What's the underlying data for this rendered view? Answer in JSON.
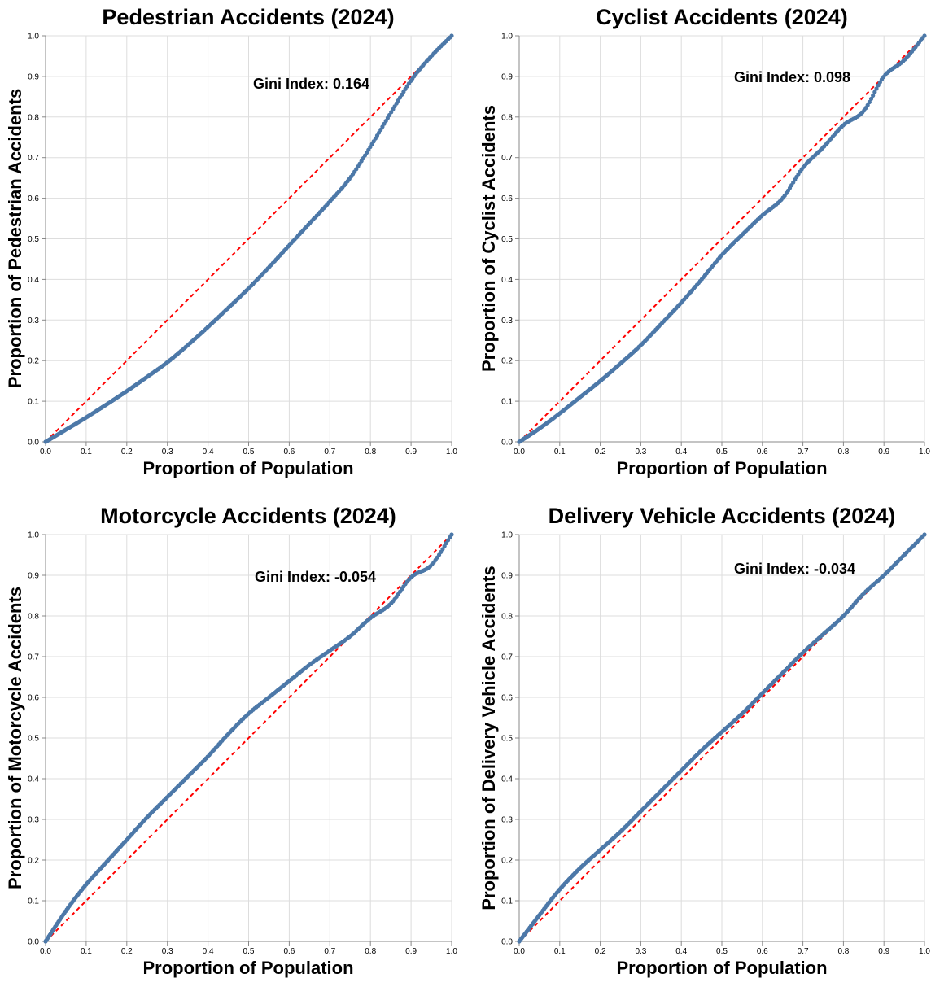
{
  "colors": {
    "curve": "#4c78a8",
    "equality": "#ff0000",
    "grid": "#dddddd"
  },
  "chart_data": [
    {
      "type": "line",
      "title": "Pedestrian Accidents (2024)",
      "xlabel": "Proportion of Population",
      "ylabel": "Proportion of Pedestrian Accidents",
      "annotation": "Gini Index: 0.164",
      "xlim": [
        0,
        1
      ],
      "ylim": [
        0,
        1
      ],
      "x_ticks": [
        "0.0",
        "0.1",
        "0.2",
        "0.3",
        "0.4",
        "0.5",
        "0.6",
        "0.7",
        "0.8",
        "0.9",
        "1.0"
      ],
      "y_ticks": [
        "0.0",
        "0.1",
        "0.2",
        "0.3",
        "0.4",
        "0.5",
        "0.6",
        "0.7",
        "0.8",
        "0.9",
        "1.0"
      ],
      "grid": true,
      "series": [
        {
          "values_x": [
            0,
            0.05,
            0.1,
            0.15,
            0.2,
            0.25,
            0.3,
            0.35,
            0.4,
            0.45,
            0.5,
            0.55,
            0.6,
            0.65,
            0.7,
            0.75,
            0.8,
            0.85,
            0.9,
            0.95,
            1.0
          ],
          "values_y": [
            0,
            0.03,
            0.06,
            0.092,
            0.125,
            0.16,
            0.196,
            0.238,
            0.283,
            0.33,
            0.378,
            0.43,
            0.484,
            0.538,
            0.592,
            0.65,
            0.727,
            0.81,
            0.89,
            0.95,
            1.0
          ]
        },
        {
          "values_x": [
            0,
            1
          ],
          "values_y": [
            0,
            1
          ]
        }
      ]
    },
    {
      "type": "line",
      "title": "Cyclist Accidents (2024)",
      "xlabel": "Proportion of Population",
      "ylabel": "Proportion of Cyclist Accidents",
      "annotation": "Gini Index: 0.098",
      "xlim": [
        0,
        1
      ],
      "ylim": [
        0,
        1
      ],
      "x_ticks": [
        "0.0",
        "0.1",
        "0.2",
        "0.3",
        "0.4",
        "0.5",
        "0.6",
        "0.7",
        "0.8",
        "0.9",
        "1.0"
      ],
      "y_ticks": [
        "0.0",
        "0.1",
        "0.2",
        "0.3",
        "0.4",
        "0.5",
        "0.6",
        "0.7",
        "0.8",
        "0.9",
        "1.0"
      ],
      "grid": true,
      "series": [
        {
          "values_x": [
            0,
            0.05,
            0.1,
            0.15,
            0.2,
            0.25,
            0.3,
            0.35,
            0.4,
            0.45,
            0.5,
            0.55,
            0.6,
            0.65,
            0.7,
            0.75,
            0.8,
            0.85,
            0.9,
            0.95,
            1.0
          ],
          "values_y": [
            0,
            0.033,
            0.07,
            0.11,
            0.15,
            0.193,
            0.238,
            0.29,
            0.343,
            0.4,
            0.46,
            0.51,
            0.558,
            0.6,
            0.675,
            0.725,
            0.78,
            0.815,
            0.9,
            0.94,
            1.0
          ]
        },
        {
          "values_x": [
            0,
            1
          ],
          "values_y": [
            0,
            1
          ]
        }
      ]
    },
    {
      "type": "line",
      "title": "Motorcycle Accidents (2024)",
      "xlabel": "Proportion of Population",
      "ylabel": "Proportion of Motorcycle Accidents",
      "annotation": "Gini Index: -0.054",
      "xlim": [
        0,
        1
      ],
      "ylim": [
        0,
        1
      ],
      "x_ticks": [
        "0.0",
        "0.1",
        "0.2",
        "0.3",
        "0.4",
        "0.5",
        "0.6",
        "0.7",
        "0.8",
        "0.9",
        "1.0"
      ],
      "y_ticks": [
        "0.0",
        "0.1",
        "0.2",
        "0.3",
        "0.4",
        "0.5",
        "0.6",
        "0.7",
        "0.8",
        "0.9",
        "1.0"
      ],
      "grid": true,
      "series": [
        {
          "values_x": [
            0,
            0.05,
            0.1,
            0.15,
            0.2,
            0.25,
            0.3,
            0.35,
            0.4,
            0.45,
            0.5,
            0.55,
            0.6,
            0.65,
            0.7,
            0.75,
            0.8,
            0.85,
            0.9,
            0.95,
            1.0
          ],
          "values_y": [
            0,
            0.075,
            0.14,
            0.195,
            0.25,
            0.305,
            0.355,
            0.405,
            0.455,
            0.51,
            0.56,
            0.6,
            0.64,
            0.68,
            0.715,
            0.75,
            0.795,
            0.83,
            0.895,
            0.925,
            1.0
          ]
        },
        {
          "values_x": [
            0,
            1
          ],
          "values_y": [
            0,
            1
          ]
        }
      ]
    },
    {
      "type": "line",
      "title": "Delivery Vehicle Accidents (2024)",
      "xlabel": "Proportion of Population",
      "ylabel": "Proportion of Delivery Vehicle Accidents",
      "annotation": "Gini Index: -0.034",
      "xlim": [
        0,
        1
      ],
      "ylim": [
        0,
        1
      ],
      "x_ticks": [
        "0.0",
        "0.1",
        "0.2",
        "0.3",
        "0.4",
        "0.5",
        "0.6",
        "0.7",
        "0.8",
        "0.9",
        "1.0"
      ],
      "y_ticks": [
        "0.0",
        "0.1",
        "0.2",
        "0.3",
        "0.4",
        "0.5",
        "0.6",
        "0.7",
        "0.8",
        "0.9",
        "1.0"
      ],
      "grid": true,
      "series": [
        {
          "values_x": [
            0,
            0.05,
            0.1,
            0.15,
            0.2,
            0.25,
            0.3,
            0.35,
            0.4,
            0.45,
            0.5,
            0.55,
            0.6,
            0.65,
            0.7,
            0.75,
            0.8,
            0.85,
            0.9,
            0.95,
            1.0
          ],
          "values_y": [
            0,
            0.065,
            0.128,
            0.18,
            0.225,
            0.27,
            0.32,
            0.37,
            0.42,
            0.47,
            0.515,
            0.56,
            0.61,
            0.66,
            0.71,
            0.755,
            0.8,
            0.855,
            0.9,
            0.95,
            1.0
          ]
        },
        {
          "values_x": [
            0,
            1
          ],
          "values_y": [
            0,
            1
          ]
        }
      ]
    }
  ]
}
